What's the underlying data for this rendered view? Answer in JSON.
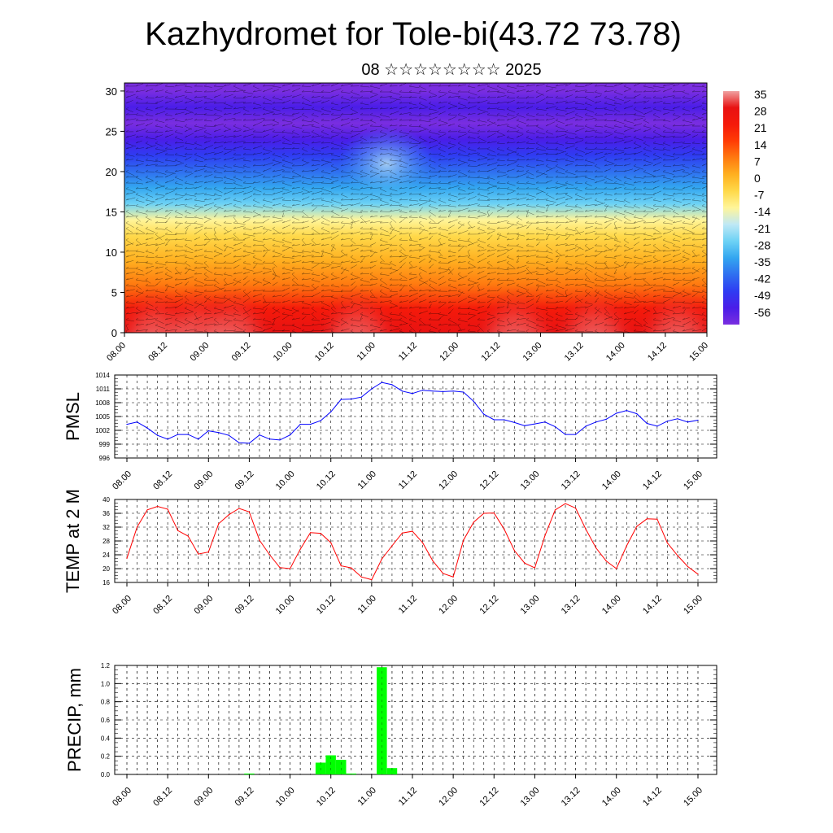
{
  "title": "Kazhydromet for Tole-bi(43.72 73.78)",
  "subtitle": "08 ☆☆☆☆☆☆☆☆ 2025",
  "colors": {
    "pmsl_line": "#0000ff",
    "temp_line": "#ff0000",
    "precip_bar": "#00ff00",
    "colormap": [
      "#7a2ee0",
      "#4a1de8",
      "#2f3cf2",
      "#2f6ff0",
      "#33a6f0",
      "#6dd2f5",
      "#bfe8f5",
      "#fff59a",
      "#ffd94a",
      "#ffb020",
      "#ff7a10",
      "#ff3c05",
      "#f51a0a",
      "#e81212",
      "#f0a0a0"
    ]
  },
  "chart_data": [
    {
      "type": "heatmap",
      "name": "cross-section",
      "ylim": [
        0,
        31
      ],
      "y_ticks": [
        "0",
        "5",
        "10",
        "15",
        "20",
        "25",
        "30"
      ],
      "x_ticks": [
        "08.00",
        "08.12",
        "09.00",
        "09.12",
        "10.00",
        "10.12",
        "11.00",
        "11.12",
        "12.00",
        "12.12",
        "13.00",
        "13.12",
        "14.00",
        "14.12",
        "15.00"
      ],
      "colorbar": {
        "labels": [
          "35",
          "28",
          "21",
          "14",
          "7",
          "0",
          "-7",
          "-14",
          "-21",
          "-28",
          "-35",
          "-42",
          "-49",
          "-56"
        ],
        "range": [
          -63,
          39
        ]
      },
      "field_levels": [
        0,
        3,
        6,
        9,
        12,
        14,
        16,
        18,
        20,
        22,
        24,
        26,
        28,
        30
      ],
      "field_values_day_mean": [
        30,
        22,
        12,
        3,
        -6,
        -14,
        -24,
        -33,
        -41,
        -48,
        -54,
        -60,
        -58,
        -62
      ],
      "overlay": "wind vectors"
    },
    {
      "type": "line",
      "name": "PMSL",
      "ylabel": "PMSL",
      "ylim": [
        996,
        1014
      ],
      "y_ticks": [
        "996",
        "999",
        "1002",
        "1005",
        "1008",
        "1011",
        "1014"
      ],
      "x_ticks": [
        "08.00",
        "08.12",
        "09.00",
        "09.12",
        "10.00",
        "10.12",
        "11.00",
        "11.12",
        "12.00",
        "12.12",
        "13.00",
        "13.12",
        "14.00",
        "14.12",
        "15.00"
      ],
      "x_hours_start": 0,
      "x_hours_step": 3,
      "values": [
        1003.3,
        1003.8,
        1002.5,
        1000.9,
        1000.1,
        1001.1,
        1001.1,
        1000.1,
        1001.9,
        1001.5,
        1000.9,
        999.3,
        999.2,
        1001.0,
        1000.1,
        999.9,
        1001.0,
        1003.3,
        1003.3,
        1004.1,
        1006.0,
        1008.7,
        1008.8,
        1009.2,
        1011.0,
        1012.4,
        1011.9,
        1010.5,
        1010.0,
        1010.7,
        1010.5,
        1010.4,
        1010.5,
        1010.3,
        1008.3,
        1005.5,
        1004.3,
        1004.3,
        1003.7,
        1003.0,
        1003.4,
        1003.8,
        1002.8,
        1001.1,
        1001.1,
        1002.9,
        1003.8,
        1004.4,
        1005.7,
        1006.3,
        1005.6,
        1003.5,
        1002.9,
        1004.0,
        1004.5,
        1003.8,
        1004.2
      ]
    },
    {
      "type": "line",
      "name": "TEMP at 2 M",
      "ylabel": "TEMP at 2 M",
      "ylim": [
        16,
        40
      ],
      "y_ticks": [
        "16",
        "20",
        "24",
        "28",
        "32",
        "36",
        "40"
      ],
      "x_ticks": [
        "08.00",
        "08.12",
        "09.00",
        "09.12",
        "10.00",
        "10.12",
        "11.00",
        "11.12",
        "12.00",
        "12.12",
        "13.00",
        "13.12",
        "14.00",
        "14.12",
        "15.00"
      ],
      "x_hours_start": 0,
      "x_hours_step": 3,
      "values": [
        23.0,
        32.0,
        37.0,
        38.0,
        37.2,
        31.0,
        29.4,
        24.2,
        24.8,
        33.0,
        35.6,
        37.4,
        36.4,
        28.2,
        24.0,
        20.3,
        20.0,
        25.6,
        30.4,
        30.2,
        27.5,
        20.8,
        20.2,
        17.6,
        16.8,
        22.8,
        26.6,
        30.3,
        30.8,
        27.5,
        22.2,
        18.6,
        17.6,
        28.2,
        33.4,
        36.0,
        36.1,
        31.4,
        25.2,
        21.6,
        20.2,
        29.6,
        37.0,
        38.8,
        37.5,
        31.4,
        26.0,
        22.2,
        20.0,
        26.6,
        32.2,
        34.4,
        34.3,
        27.4,
        23.8,
        20.6,
        18.4
      ]
    },
    {
      "type": "bar",
      "name": "PRECIP, mm",
      "ylabel": "PRECIP, mm",
      "ylim": [
        0,
        1.2
      ],
      "y_ticks": [
        "0.0",
        "0.2",
        "0.4",
        "0.6",
        "0.8",
        "1.0",
        "1.2"
      ],
      "x_ticks": [
        "08.00",
        "08.12",
        "09.00",
        "09.12",
        "10.00",
        "10.12",
        "11.00",
        "11.12",
        "12.00",
        "12.12",
        "13.00",
        "13.12",
        "14.00",
        "14.12",
        "15.00"
      ],
      "x_hours_start": 0,
      "x_hours_step": 3,
      "values": [
        0,
        0,
        0,
        0,
        0,
        0,
        0,
        0,
        0,
        0,
        0,
        0,
        0.01,
        0,
        0,
        0,
        0,
        0,
        0,
        0.13,
        0.21,
        0.16,
        0.01,
        0,
        0,
        1.18,
        0.07,
        0,
        0,
        0,
        0,
        0,
        0,
        0,
        0,
        0,
        0,
        0,
        0,
        0,
        0,
        0,
        0,
        0,
        0,
        0,
        0,
        0,
        0,
        0,
        0,
        0,
        0,
        0,
        0,
        0
      ]
    }
  ]
}
